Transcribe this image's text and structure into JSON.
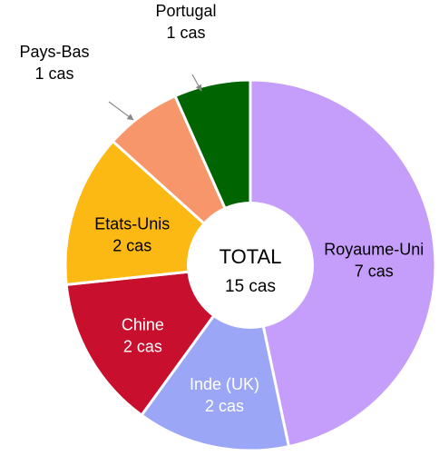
{
  "chart_data": {
    "type": "donut",
    "categories": [
      "Royaume-Uni",
      "Inde (UK)",
      "Chine",
      "Etats-Unis",
      "Pays-Bas",
      "Portugal"
    ],
    "values": [
      7,
      2,
      2,
      2,
      1,
      1
    ],
    "value_labels": [
      "7 cas",
      "2 cas",
      "2 cas",
      "2 cas",
      "1 cas",
      "1 cas"
    ],
    "colors": [
      "#c59dfa",
      "#9ca6f6",
      "#c8102e",
      "#fdb913",
      "#f7966b",
      "#006400"
    ],
    "center_title": "TOTAL",
    "center_label": "15 cas"
  }
}
